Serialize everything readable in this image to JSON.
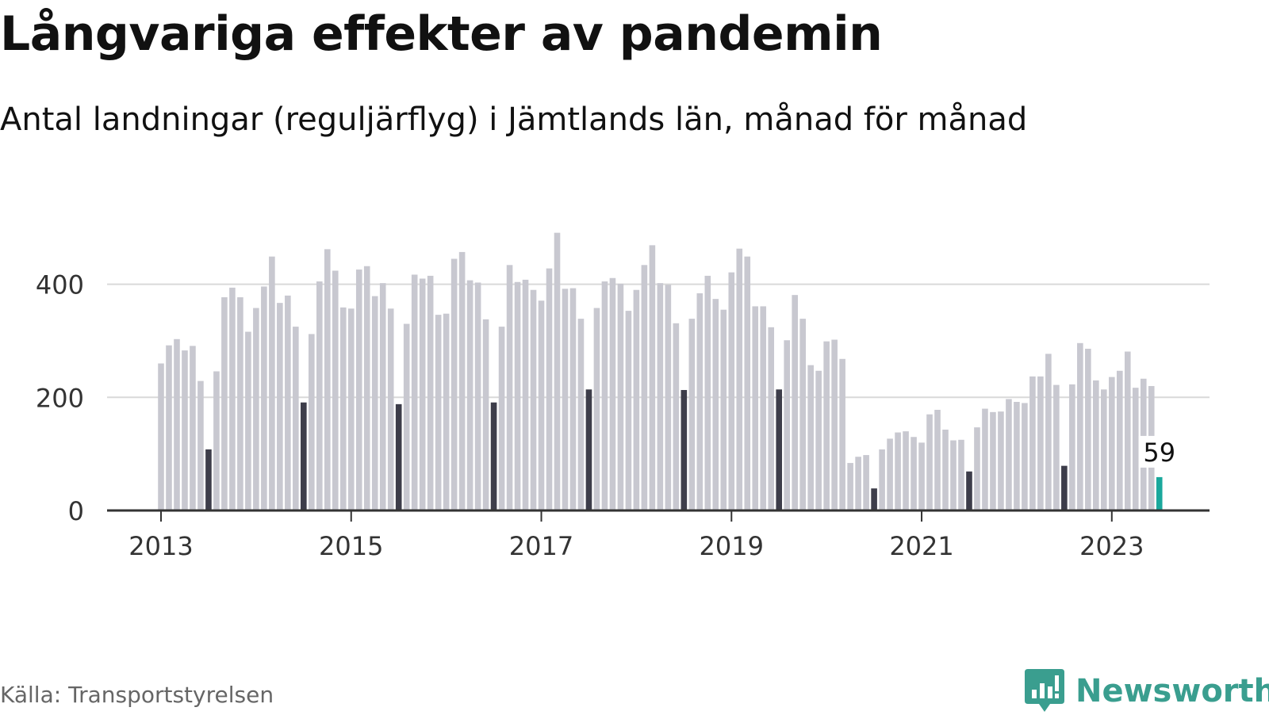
{
  "header": {
    "title": "Långvariga effekter av pandemin",
    "subtitle": "Antal landningar (reguljärflyg) i Jämtlands län, månad för månad"
  },
  "footer": {
    "source": "Källa: Transportstyrelsen",
    "brand": "Newsworthy"
  },
  "colors": {
    "bar": "#c8c8d0",
    "highlight_month": "#3d3d4a",
    "latest": "#1aa89c",
    "axis": "#333333",
    "grid": "#d9d9d9",
    "brand": "#3a9e8f"
  },
  "chart_data": {
    "type": "bar",
    "start": "2013-01",
    "ylim": [
      0,
      500
    ],
    "yticks": [
      0,
      200,
      400
    ],
    "xticks": [
      "2013",
      "2015",
      "2017",
      "2019",
      "2021",
      "2023"
    ],
    "grid": "horizontal",
    "legend": "none",
    "highlight_month": "juli",
    "values": [
      260,
      292,
      303,
      283,
      291,
      229,
      108,
      246,
      377,
      394,
      377,
      316,
      358,
      396,
      449,
      367,
      380,
      325,
      191,
      312,
      405,
      462,
      424,
      359,
      357,
      426,
      432,
      379,
      402,
      357,
      188,
      330,
      417,
      410,
      415,
      346,
      348,
      445,
      457,
      407,
      403,
      338,
      191,
      325,
      434,
      404,
      408,
      390,
      371,
      428,
      491,
      392,
      393,
      339,
      214,
      358,
      405,
      411,
      401,
      353,
      390,
      434,
      469,
      402,
      399,
      331,
      213,
      339,
      384,
      415,
      374,
      355,
      421,
      463,
      449,
      361,
      361,
      324,
      214,
      301,
      381,
      339,
      257,
      247,
      299,
      302,
      268,
      84,
      95,
      98,
      39,
      108,
      127,
      138,
      140,
      130,
      120,
      170,
      178,
      143,
      124,
      125,
      69,
      147,
      180,
      174,
      175,
      197,
      192,
      190,
      237,
      237,
      277,
      222,
      79,
      223,
      296,
      286,
      230,
      214,
      236,
      247,
      281,
      217,
      233,
      220,
      59
    ],
    "latest_label": "59"
  }
}
